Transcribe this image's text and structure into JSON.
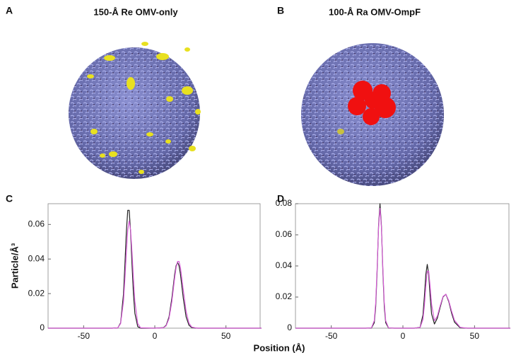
{
  "panels": [
    {
      "label": "A",
      "title": "150-Å Re OMV-only"
    },
    {
      "label": "B",
      "title": "100-Å Ra OMV-OmpF"
    }
  ],
  "figure": {
    "xlabel": "Position (Å)",
    "ylabel": "Particle/Å³"
  },
  "chart_data": [
    {
      "type": "line",
      "panel": "C",
      "x": [
        -75,
        -30,
        -26,
        -24,
        -22,
        -21,
        -20,
        -19,
        -18,
        -17,
        -16,
        -15,
        -14,
        -12,
        -10,
        0,
        6,
        8,
        10,
        12,
        14,
        15,
        16,
        17,
        18,
        20,
        22,
        24,
        26,
        30,
        75
      ],
      "series": [
        {
          "color": "#222222",
          "values": [
            0,
            0,
            0.0002,
            0.0031,
            0.0197,
            0.0367,
            0.0555,
            0.0682,
            0.0682,
            0.0555,
            0.0367,
            0.0197,
            0.0086,
            0.0009,
            0,
            0,
            0.0003,
            0.0017,
            0.0065,
            0.0174,
            0.0313,
            0.0362,
            0.038,
            0.0362,
            0.0313,
            0.0174,
            0.0065,
            0.0017,
            0.0003,
            0,
            0
          ]
        },
        {
          "color": "#d65cd6",
          "values": [
            0,
            0,
            0.0002,
            0.0027,
            0.0155,
            0.0284,
            0.0438,
            0.0568,
            0.062,
            0.0568,
            0.0438,
            0.0284,
            0.0155,
            0.0027,
            0.0002,
            0,
            0.0002,
            0.0014,
            0.0056,
            0.0154,
            0.0293,
            0.0352,
            0.0386,
            0.0386,
            0.0352,
            0.0222,
            0.0097,
            0.0029,
            0.0006,
            0,
            0
          ]
        }
      ],
      "xlim": [
        -75,
        74
      ],
      "xticks": [
        -50,
        0,
        50
      ],
      "ylim": [
        0,
        0.072
      ],
      "yticks": [
        0,
        0.02,
        0.04,
        0.06
      ]
    },
    {
      "type": "line",
      "panel": "D",
      "x": [
        -75,
        -26,
        -22,
        -20,
        -19,
        -18,
        -17,
        -16,
        -15,
        -14,
        -13,
        -12,
        -10,
        -6,
        8,
        12,
        14,
        15,
        16,
        17,
        18,
        19,
        20,
        22,
        24,
        26,
        28,
        30,
        32,
        34,
        36,
        40,
        45,
        75
      ],
      "series": [
        {
          "color": "#222222",
          "values": [
            0,
            0,
            0.0001,
            0.0035,
            0.0138,
            0.0366,
            0.0658,
            0.08,
            0.0658,
            0.0366,
            0.0138,
            0.0035,
            0.0001,
            0,
            0,
            0.0005,
            0.0086,
            0.0205,
            0.0345,
            0.041,
            0.0345,
            0.0205,
            0.0092,
            0.0027,
            0.0064,
            0.0134,
            0.0201,
            0.0218,
            0.0171,
            0.0096,
            0.0039,
            0.0002,
            0,
            0
          ]
        },
        {
          "color": "#d65cd6",
          "values": [
            0,
            0,
            0.0002,
            0.0048,
            0.0162,
            0.0385,
            0.0648,
            0.077,
            0.0648,
            0.0385,
            0.0162,
            0.0048,
            0.0002,
            0,
            0,
            0.0004,
            0.0057,
            0.0145,
            0.0269,
            0.0366,
            0.0366,
            0.0269,
            0.0155,
            0.0048,
            0.0077,
            0.0144,
            0.0204,
            0.0218,
            0.0177,
            0.0109,
            0.0051,
            0.0005,
            0,
            0
          ]
        }
      ],
      "xlim": [
        -75,
        74
      ],
      "xticks": [
        -50,
        0,
        50
      ],
      "ylim": [
        0,
        0.08
      ],
      "yticks": [
        0,
        0.02,
        0.04,
        0.06,
        0.08
      ]
    }
  ]
}
